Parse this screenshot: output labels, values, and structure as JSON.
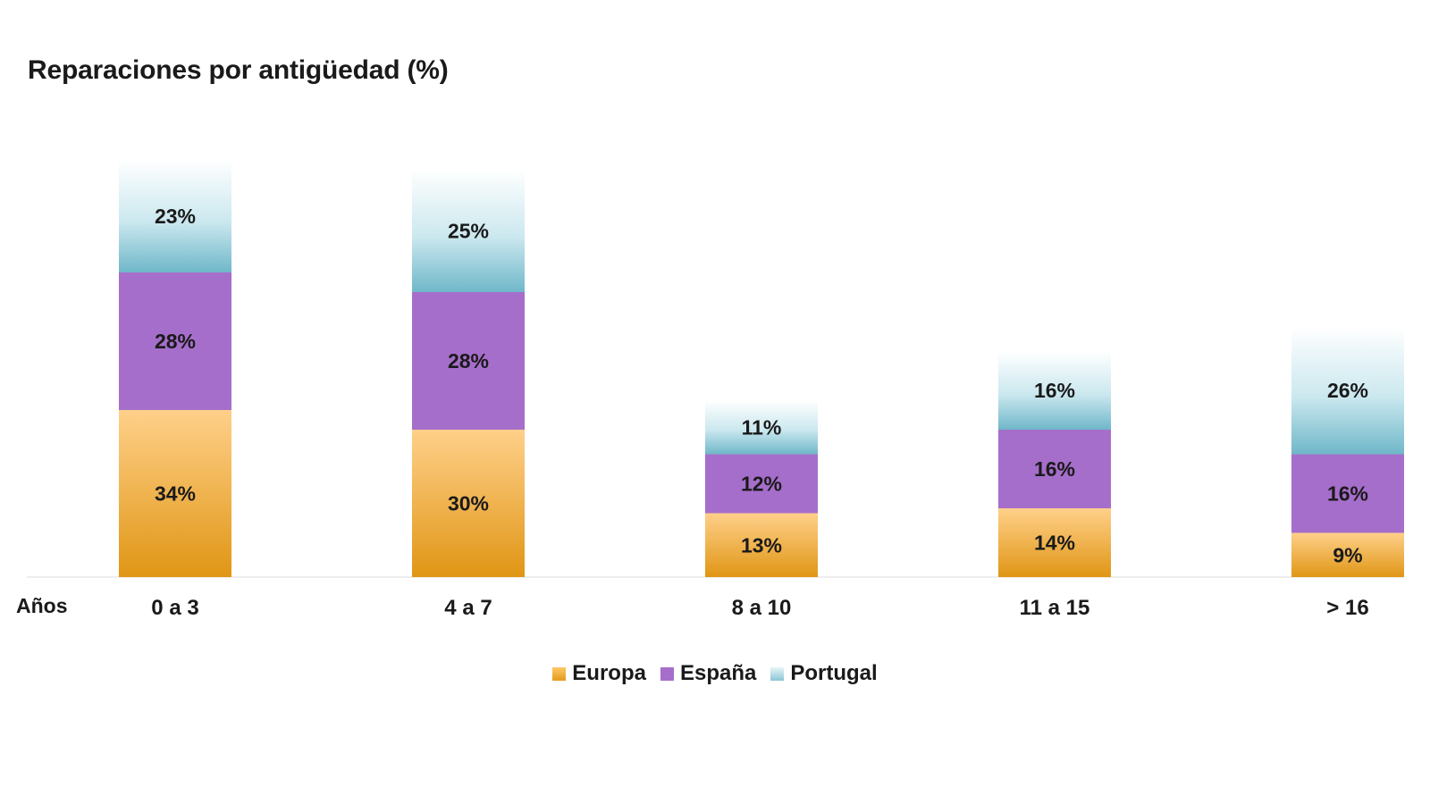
{
  "chart_data": {
    "type": "bar",
    "stacked": true,
    "title": "Reparaciones por antigüedad (%)",
    "xlabel": "Años",
    "ylabel": "",
    "categories": [
      "0 a 3",
      "4 a 7",
      "8 a 10",
      "11 a 15",
      "> 16"
    ],
    "series": [
      {
        "name": "Europa",
        "values": [
          34,
          30,
          13,
          14,
          9
        ],
        "labels": [
          "34%",
          "30%",
          "13%",
          "14%",
          "9%"
        ],
        "color": "#f0a020"
      },
      {
        "name": "España",
        "values": [
          28,
          28,
          12,
          16,
          16
        ],
        "labels": [
          "28%",
          "28%",
          "12%",
          "16%",
          "16%"
        ],
        "color": "#a86fc9"
      },
      {
        "name": "Portugal",
        "values": [
          23,
          25,
          11,
          16,
          26
        ],
        "labels": [
          "23%",
          "25%",
          "11%",
          "16%",
          "26%"
        ],
        "color": "#9fd0dc"
      }
    ],
    "legend": "bottom-center",
    "grid": false
  }
}
